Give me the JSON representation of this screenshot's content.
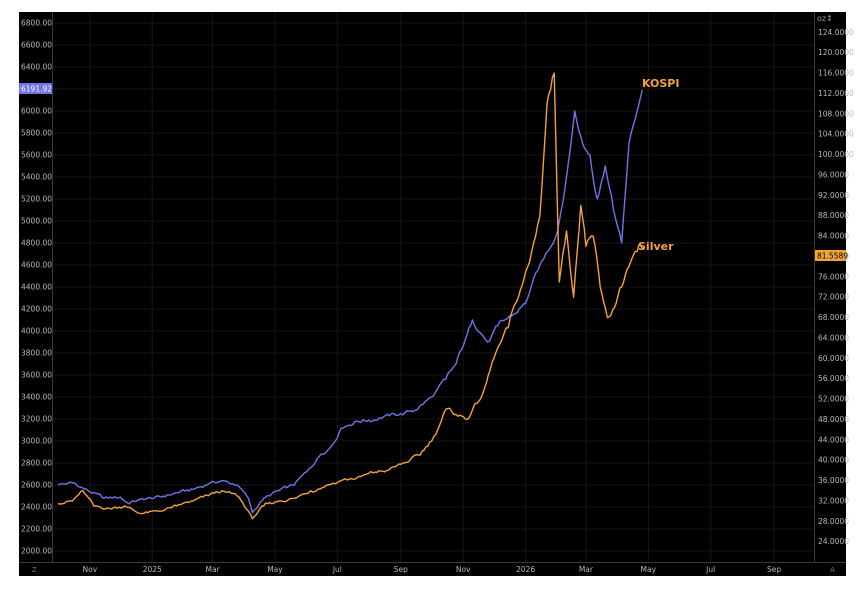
{
  "chart_data": {
    "type": "line",
    "x_ticks": [
      "Nov",
      "2025",
      "Mar",
      "May",
      "Jul",
      "Sep",
      "Nov",
      "2026",
      "Mar",
      "May",
      "Jul",
      "Sep"
    ],
    "left_axis": {
      "ylim": [
        1900,
        6900
      ],
      "ticks": [
        "2000.00",
        "2200.00",
        "2400.00",
        "2600.00",
        "2800.00",
        "3000.00",
        "3200.00",
        "3400.00",
        "3600.00",
        "3800.00",
        "4000.00",
        "4200.00",
        "4400.00",
        "4600.00",
        "4800.00",
        "5000.00",
        "5200.00",
        "5400.00",
        "5600.00",
        "5800.00",
        "6000.00",
        "6200.00",
        "6400.00",
        "6600.00",
        "6800.00"
      ],
      "last_value_label": "6191.92"
    },
    "right_axis": {
      "unit_label": "oz↕",
      "ylim": [
        20,
        128
      ],
      "ticks": [
        "24.0000",
        "28.0000",
        "32.0000",
        "36.0000",
        "40.0000",
        "44.0000",
        "48.0000",
        "52.0000",
        "56.0000",
        "60.0000",
        "64.0000",
        "68.0000",
        "72.0000",
        "76.0000",
        "80.0000",
        "84.0000",
        "88.0000",
        "92.0000",
        "96.0000",
        "100.0000",
        "104.0000",
        "108.0000",
        "112.0000",
        "116.0000",
        "120.0000",
        "124.0000"
      ],
      "last_value_label": "81.5589"
    },
    "series": [
      {
        "name": "KOSPI",
        "axis": "left",
        "color": "#6f74e8",
        "x": [
          "2024-10-01",
          "2024-10-15",
          "2024-11-01",
          "2024-11-15",
          "2024-12-01",
          "2024-12-09",
          "2024-12-20",
          "2025-01-10",
          "2025-01-25",
          "2025-02-10",
          "2025-02-25",
          "2025-03-10",
          "2025-03-25",
          "2025-04-05",
          "2025-04-09",
          "2025-04-20",
          "2025-05-05",
          "2025-05-20",
          "2025-06-01",
          "2025-06-15",
          "2025-06-25",
          "2025-07-05",
          "2025-07-20",
          "2025-08-01",
          "2025-08-15",
          "2025-09-01",
          "2025-09-15",
          "2025-10-01",
          "2025-10-15",
          "2025-10-25",
          "2025-11-03",
          "2025-11-10",
          "2025-11-25",
          "2025-12-05",
          "2025-12-20",
          "2026-01-01",
          "2026-01-15",
          "2026-02-01",
          "2026-02-10",
          "2026-02-18",
          "2026-02-26",
          "2026-03-05",
          "2026-03-12",
          "2026-03-20",
          "2026-03-28",
          "2026-04-05",
          "2026-04-12",
          "2026-04-20",
          "2026-04-25"
        ],
        "values": [
          2600,
          2620,
          2540,
          2480,
          2490,
          2430,
          2470,
          2490,
          2530,
          2560,
          2610,
          2640,
          2600,
          2480,
          2350,
          2480,
          2550,
          2600,
          2720,
          2880,
          2950,
          3120,
          3180,
          3190,
          3220,
          3250,
          3280,
          3400,
          3560,
          3700,
          3920,
          4100,
          3900,
          4050,
          4150,
          4250,
          4600,
          4900,
          5400,
          6000,
          5700,
          5600,
          5200,
          5500,
          5100,
          4800,
          5700,
          6000,
          6191.92
        ]
      },
      {
        "name": "Silver",
        "axis": "right",
        "color": "#f2a33a",
        "x": [
          "2024-10-01",
          "2024-10-15",
          "2024-10-25",
          "2024-11-05",
          "2024-11-20",
          "2024-12-05",
          "2024-12-20",
          "2025-01-10",
          "2025-01-25",
          "2025-02-10",
          "2025-02-25",
          "2025-03-10",
          "2025-03-25",
          "2025-04-05",
          "2025-04-09",
          "2025-04-20",
          "2025-05-05",
          "2025-05-20",
          "2025-06-05",
          "2025-06-20",
          "2025-07-05",
          "2025-07-20",
          "2025-08-05",
          "2025-08-20",
          "2025-09-05",
          "2025-09-20",
          "2025-10-05",
          "2025-10-15",
          "2025-10-25",
          "2025-11-05",
          "2025-11-20",
          "2025-12-01",
          "2025-12-15",
          "2025-12-25",
          "2026-01-05",
          "2026-01-15",
          "2026-01-22",
          "2026-01-29",
          "2026-02-03",
          "2026-02-10",
          "2026-02-17",
          "2026-02-24",
          "2026-03-01",
          "2026-03-08",
          "2026-03-15",
          "2026-03-22",
          "2026-03-29",
          "2026-04-05",
          "2026-04-12",
          "2026-04-20",
          "2026-04-25"
        ],
        "values": [
          31.5,
          32,
          34,
          31,
          30.5,
          31,
          29.5,
          30,
          31,
          32,
          33,
          34,
          33,
          30,
          28.5,
          31,
          32,
          32.5,
          34,
          35,
          36,
          36.5,
          37.5,
          38,
          39.5,
          41,
          45,
          50,
          49,
          48,
          53,
          60,
          66,
          72,
          79,
          88,
          110,
          116,
          75,
          85,
          72,
          90,
          82,
          84,
          74,
          68,
          70,
          74,
          78,
          81,
          81.56
        ]
      }
    ],
    "series_labels": [
      "KOSPI",
      "Silver"
    ],
    "left_corner_label": "Z",
    "right_corner_label": "A"
  }
}
